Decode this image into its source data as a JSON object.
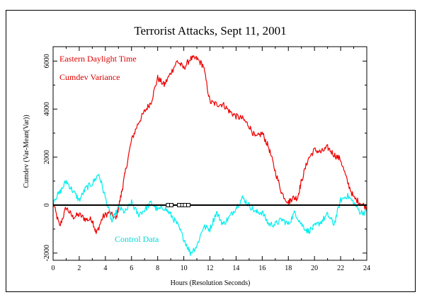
{
  "chart_data": {
    "type": "line",
    "title": "Terrorist Attacks, Sept 11, 2001",
    "xlabel": "Hours (Resolution Seconds)",
    "ylabel": "Cumdev (Var-Mean(Var))",
    "xlim": [
      0,
      24
    ],
    "ylim": [
      -2300,
      6600
    ],
    "x_ticks": [
      0,
      2,
      4,
      6,
      8,
      10,
      12,
      14,
      16,
      18,
      20,
      22,
      24
    ],
    "y_ticks": [
      -2000,
      0,
      2000,
      4000,
      6000
    ],
    "grid": false,
    "annotations": {
      "time_label": "Eastern Daylight Time",
      "series_label": "Cumdev Variance",
      "control_label": "Control Data"
    },
    "event_markers_hours": [
      8.8,
      9.05,
      9.65,
      9.9,
      10.1,
      10.35
    ],
    "series": [
      {
        "color": "#ee0000",
        "x": [
          0,
          0.5,
          1,
          1.5,
          2,
          2.5,
          3,
          3.3,
          3.8,
          4.3,
          4.8,
          5.2,
          5.5,
          6,
          6.5,
          7,
          7.5,
          8,
          8.5,
          9,
          9.5,
          10,
          10.5,
          11,
          11.5,
          12,
          12.5,
          13,
          13.5,
          14,
          14.5,
          15,
          15.5,
          16,
          16.5,
          17,
          17.5,
          18,
          18.3,
          18.7,
          19,
          19.5,
          20,
          20.5,
          21,
          21.5,
          22,
          22.5,
          23,
          23.5,
          24
        ],
        "y": [
          100,
          -900,
          -100,
          -500,
          -400,
          -600,
          -600,
          -1200,
          -500,
          -300,
          -600,
          400,
          1300,
          2700,
          3400,
          3900,
          4300,
          5300,
          5000,
          5500,
          6000,
          5700,
          6100,
          6100,
          5800,
          4300,
          4200,
          4200,
          3900,
          3700,
          3600,
          3300,
          2800,
          3000,
          2400,
          1400,
          500,
          100,
          300,
          300,
          1000,
          1900,
          2300,
          2200,
          2400,
          2100,
          1900,
          1000,
          300,
          100,
          -100
        ]
      },
      {
        "color": "#00eeee",
        "x": [
          0,
          0.5,
          1,
          1.5,
          2,
          2.5,
          3,
          3.5,
          4,
          4.5,
          5,
          5.5,
          6,
          6.5,
          7,
          7.5,
          8,
          8.5,
          9,
          9.5,
          10,
          10.5,
          11,
          11.5,
          12,
          12.5,
          13,
          13.5,
          14,
          14.5,
          15,
          15.5,
          16,
          16.5,
          17,
          17.5,
          18,
          18.5,
          19,
          19.5,
          20,
          20.5,
          21,
          21.5,
          22,
          22.5,
          23,
          23.5,
          24
        ],
        "y": [
          200,
          500,
          1000,
          600,
          200,
          700,
          900,
          1300,
          300,
          -700,
          -100,
          -300,
          100,
          -400,
          -200,
          100,
          -200,
          -100,
          -400,
          -800,
          -1400,
          -2000,
          -1700,
          -900,
          -1000,
          -300,
          -800,
          -500,
          -100,
          300,
          0,
          -300,
          -300,
          -800,
          -800,
          -600,
          -800,
          -300,
          -800,
          -1100,
          -900,
          -700,
          -400,
          -800,
          200,
          400,
          100,
          -300,
          -300
        ]
      }
    ]
  }
}
